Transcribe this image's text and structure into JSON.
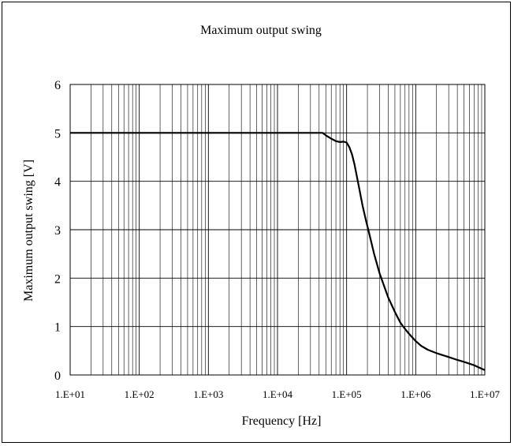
{
  "chart_data": {
    "type": "line",
    "title": "Maximum output swing",
    "xlabel": "Frequency [Hz]",
    "ylabel": "Maximum output swing [V]",
    "x_scale": "log",
    "xlim": [
      10,
      10000000
    ],
    "ylim": [
      0,
      6
    ],
    "x_tick_values": [
      10,
      100,
      1000,
      10000,
      100000,
      1000000,
      10000000
    ],
    "x_tick_labels": [
      "1.E+01",
      "1.E+02",
      "1.E+03",
      "1.E+04",
      "1.E+05",
      "1.E+06",
      "1.E+07"
    ],
    "y_ticks": [
      0,
      1,
      2,
      3,
      4,
      5,
      6
    ],
    "grid": true,
    "legend": "none",
    "line_color": "#000000",
    "series": [
      {
        "x": [
          10,
          100,
          1000,
          10000,
          30000,
          45000,
          50000,
          60000,
          70000,
          80000,
          90000,
          100000,
          110000,
          120000,
          130000,
          150000,
          170000,
          190000,
          210000,
          250000,
          300000,
          400000,
          500000,
          600000,
          700000,
          800000,
          1000000,
          1200000,
          1500000,
          2000000,
          3000000,
          4000000,
          5000000,
          7000000,
          10000000
        ],
        "y": [
          5.0,
          5.0,
          5.0,
          5.0,
          5.0,
          5.0,
          4.95,
          4.88,
          4.83,
          4.81,
          4.82,
          4.8,
          4.7,
          4.55,
          4.35,
          3.9,
          3.5,
          3.2,
          2.95,
          2.5,
          2.1,
          1.6,
          1.3,
          1.08,
          0.95,
          0.85,
          0.7,
          0.6,
          0.52,
          0.45,
          0.37,
          0.31,
          0.27,
          0.2,
          0.1
        ]
      }
    ]
  }
}
